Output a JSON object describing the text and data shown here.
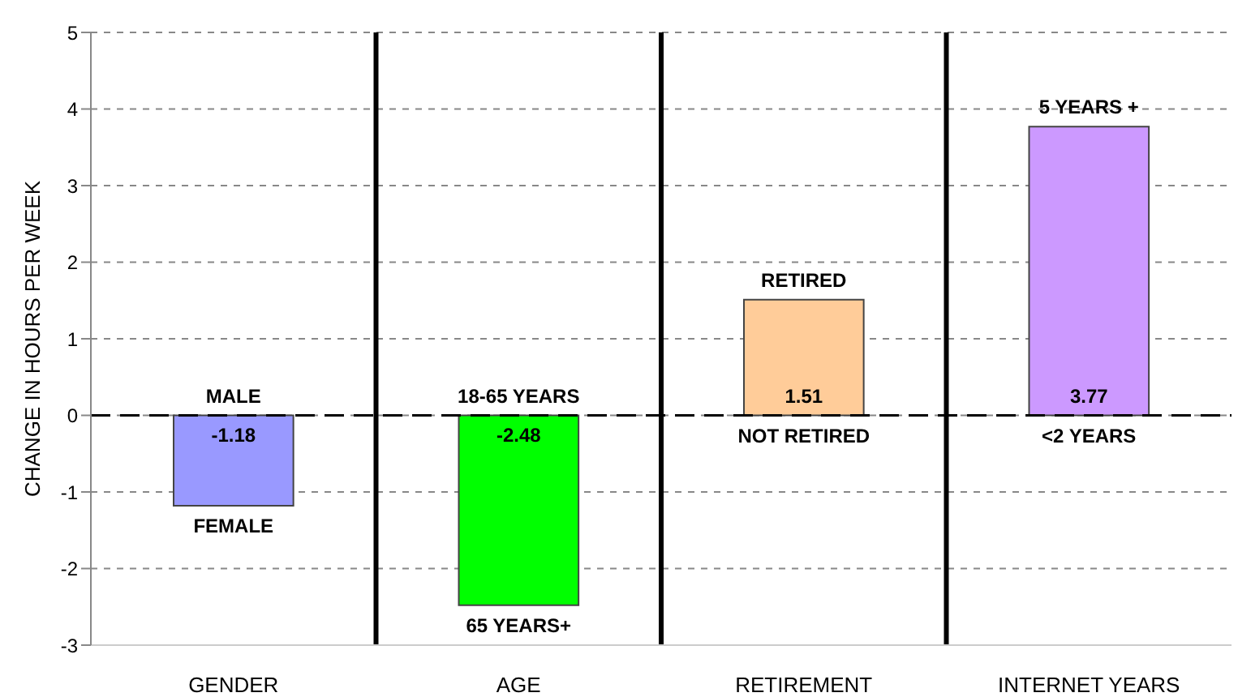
{
  "chart_data": {
    "type": "bar",
    "ylabel": "CHANGE IN HOURS PER WEEK",
    "categories": [
      "GENDER",
      "AGE",
      "RETIREMENT",
      "INTERNET YEARS"
    ],
    "values": [
      -1.18,
      -2.48,
      1.51,
      3.77
    ],
    "colors": [
      "#9999ff",
      "#00ff00",
      "#ffcc99",
      "#cc99ff"
    ],
    "ylim": [
      -3,
      5
    ],
    "yticks": [
      -3,
      -2,
      -1,
      0,
      1,
      2,
      3,
      4,
      5
    ],
    "grid": true,
    "data_labels": true,
    "ref_lines": [
      {
        "axis": "y",
        "value": 0,
        "color": "#000000",
        "line_style": "dashed"
      }
    ],
    "annotations": [
      {
        "text": "MALE",
        "x": "GENDER",
        "y": 0
      },
      {
        "text": "FEMALE",
        "x": "GENDER",
        "y": -1.18
      },
      {
        "text": "18-65 YEARS",
        "x": "AGE",
        "y": 0
      },
      {
        "text": "65 YEARS+",
        "x": "AGE",
        "y": -2.48
      },
      {
        "text": "RETIRED",
        "x": "RETIREMENT",
        "y": 1.51
      },
      {
        "text": "NOT RETIRED",
        "x": "RETIREMENT",
        "y": 0
      },
      {
        "text": "5 YEARS +",
        "x": "INTERNET YEARS",
        "y": 3.77
      },
      {
        "text": "<2 YEARS",
        "x": "INTERNET YEARS",
        "y": 0
      }
    ]
  }
}
